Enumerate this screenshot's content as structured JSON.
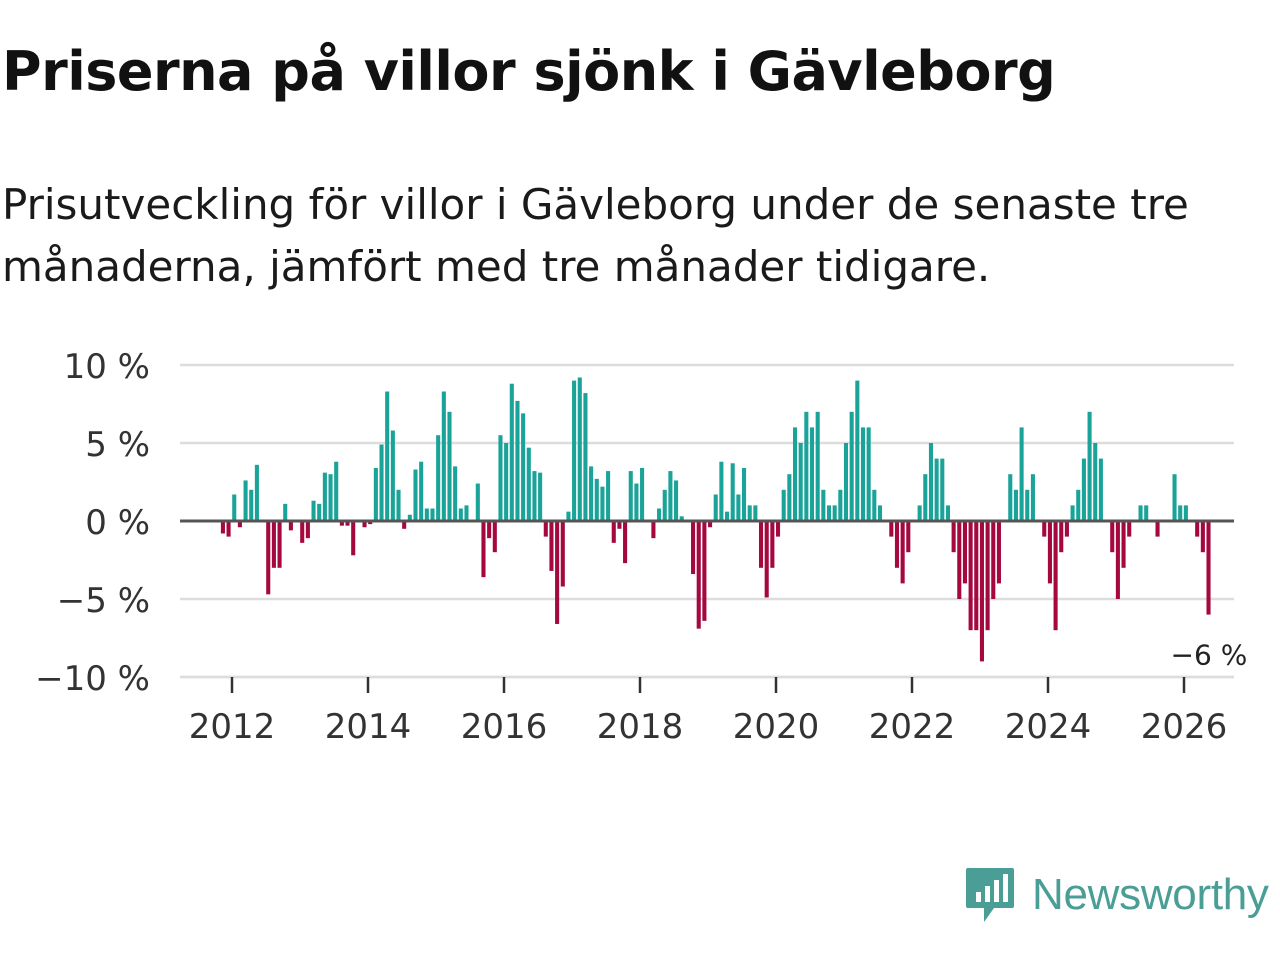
{
  "title": "Priserna på villor sjönk i Gävleborg",
  "subtitle": "Prisutveckling för villor i Gävleborg under de senaste tre månaderna, jämfört med tre månader tidigare.",
  "colors": {
    "positive": "#1aa398",
    "negative": "#a5073f",
    "grid": "#dddddd",
    "axis": "#555555"
  },
  "brand": {
    "name": "Newsworthy",
    "icon": "newsworthy-logo-icon",
    "color": "#4a9e95"
  },
  "chart_data": {
    "type": "bar",
    "title": "Priserna på villor sjönk i Gävleborg",
    "xlabel": "",
    "ylabel": "",
    "ylim": [
      -10,
      10
    ],
    "y_ticks": [
      {
        "value": 10,
        "label": "10 %"
      },
      {
        "value": 5,
        "label": "5 %"
      },
      {
        "value": 0,
        "label": "0 %"
      },
      {
        "value": -5,
        "label": "−5 %"
      },
      {
        "value": -10,
        "label": "−10 %"
      }
    ],
    "x_ticks": [
      {
        "value": 2012,
        "label": "2012"
      },
      {
        "value": 2014,
        "label": "2014"
      },
      {
        "value": 2016,
        "label": "2016"
      },
      {
        "value": 2018,
        "label": "2018"
      },
      {
        "value": 2020,
        "label": "2020"
      },
      {
        "value": 2022,
        "label": "2022"
      },
      {
        "value": 2024,
        "label": "2024"
      },
      {
        "value": 2026,
        "label": "2026"
      }
    ],
    "x_start": 2011.2,
    "monthly_step": 0.0833,
    "values": [
      0,
      0,
      0,
      0,
      0,
      0,
      0,
      0,
      -0.8,
      -1,
      1.7,
      -0.4,
      2.6,
      2,
      3.6,
      0,
      -4.7,
      -3,
      -3,
      1.1,
      -0.6,
      0,
      -1.4,
      -1.1,
      1.3,
      1.1,
      3.1,
      3,
      3.8,
      -0.3,
      -0.3,
      -2.2,
      0,
      -0.4,
      -0.2,
      3.4,
      4.9,
      8.3,
      5.8,
      2,
      -0.5,
      0.4,
      3.3,
      3.8,
      0.8,
      0.8,
      5.5,
      8.3,
      7,
      3.5,
      0.8,
      1,
      0,
      2.4,
      -3.6,
      -1.1,
      -2,
      5.5,
      5,
      8.8,
      7.7,
      6.9,
      4.7,
      3.2,
      3.1,
      -1,
      -3.2,
      -6.6,
      -4.2,
      0.6,
      9,
      9.2,
      8.2,
      3.5,
      2.7,
      2.2,
      3.2,
      -1.4,
      -0.5,
      -2.7,
      3.2,
      2.4,
      3.4,
      0,
      -1.1,
      0.8,
      2,
      3.2,
      2.6,
      0.3,
      0,
      -3.4,
      -6.9,
      -6.4,
      -0.4,
      1.7,
      3.8,
      0.6,
      3.7,
      1.7,
      3.4,
      1,
      1,
      -3,
      -4.9,
      -3,
      -1,
      2,
      3,
      6,
      5,
      7,
      6,
      7,
      2,
      1,
      1,
      2,
      5,
      7,
      9,
      6,
      6,
      2,
      1,
      0,
      -1,
      -3,
      -4,
      -2,
      0,
      1,
      3,
      5,
      4,
      4,
      1,
      -2,
      -5,
      -4,
      -7,
      -7,
      -9,
      -7,
      -5,
      -4,
      0,
      3,
      2,
      6,
      2,
      3,
      0,
      -1,
      -4,
      -7,
      -2,
      -1,
      1,
      2,
      4,
      7,
      5,
      4,
      0,
      -2,
      -5,
      -3,
      -1,
      0,
      1,
      1,
      0,
      -1,
      0,
      0,
      3,
      1,
      1,
      0,
      -1,
      -2,
      -6
    ],
    "annotations": [
      {
        "text": "−6 %",
        "at": "last bar"
      }
    ]
  }
}
